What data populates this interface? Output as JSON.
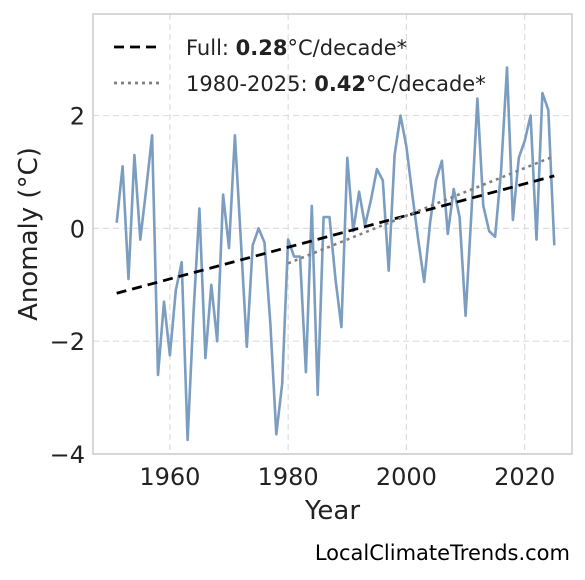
{
  "chart_data": {
    "type": "line",
    "xlabel": "Year",
    "ylabel": "Anomaly (°C)",
    "xlim": [
      1947,
      2028
    ],
    "ylim": [
      -4,
      3.8
    ],
    "xticks": [
      1960,
      1980,
      2000,
      2020
    ],
    "yticks": [
      -4,
      -2,
      0,
      2
    ],
    "ytick_labels": [
      "−4",
      "−2",
      "0",
      "2"
    ],
    "grid": true,
    "legend_position": "top-left",
    "series": [
      {
        "style": "solid",
        "color": "#7b9dc0",
        "x": [
          1951,
          1952,
          1953,
          1954,
          1955,
          1956,
          1957,
          1958,
          1959,
          1960,
          1961,
          1962,
          1963,
          1964,
          1965,
          1966,
          1967,
          1968,
          1969,
          1970,
          1971,
          1972,
          1973,
          1974,
          1975,
          1976,
          1977,
          1978,
          1979,
          1980,
          1981,
          1982,
          1983,
          1984,
          1985,
          1986,
          1987,
          1988,
          1989,
          1990,
          1991,
          1992,
          1993,
          1994,
          1995,
          1996,
          1997,
          1998,
          1999,
          2000,
          2001,
          2002,
          2003,
          2004,
          2005,
          2006,
          2007,
          2008,
          2009,
          2010,
          2011,
          2012,
          2013,
          2014,
          2015,
          2016,
          2017,
          2018,
          2019,
          2020,
          2021,
          2022,
          2023,
          2024,
          2025
        ],
        "y": [
          0.1,
          1.1,
          -0.9,
          1.3,
          -0.2,
          0.7,
          1.65,
          -2.6,
          -1.3,
          -2.25,
          -1.1,
          -0.6,
          -3.75,
          -1.5,
          0.35,
          -2.3,
          -1.0,
          -2.0,
          0.6,
          -0.35,
          1.65,
          -0.2,
          -2.1,
          -0.3,
          0.0,
          -0.25,
          -1.7,
          -3.65,
          -2.75,
          -0.2,
          -0.5,
          -0.5,
          -2.55,
          0.4,
          -2.95,
          0.2,
          0.2,
          -0.9,
          -1.75,
          1.25,
          -0.05,
          0.65,
          0.05,
          0.5,
          1.05,
          0.85,
          -0.75,
          1.3,
          2.0,
          1.45,
          0.6,
          -0.2,
          -0.95,
          0.1,
          0.85,
          1.2,
          -0.1,
          0.7,
          0.2,
          -1.55,
          0.3,
          2.3,
          0.4,
          -0.05,
          -0.15,
          1.0,
          2.85,
          0.15,
          1.25,
          1.55,
          2.0,
          -0.2,
          2.4,
          2.1,
          -0.3
        ]
      }
    ],
    "trends": [
      {
        "label_prefix": "Full: ",
        "label_value": "0.28",
        "label_suffix": "°C/decade*",
        "style": "dashed",
        "color": "#000000",
        "x": [
          1951,
          2025
        ],
        "y": [
          -1.15,
          0.93
        ]
      },
      {
        "label_prefix": "1980-2025: ",
        "label_value": "0.42",
        "label_suffix": "°C/decade*",
        "style": "dotted",
        "color": "#808080",
        "x": [
          1980,
          2025
        ],
        "y": [
          -0.62,
          1.28
        ]
      }
    ]
  },
  "credit": "LocalClimateTrends.com"
}
